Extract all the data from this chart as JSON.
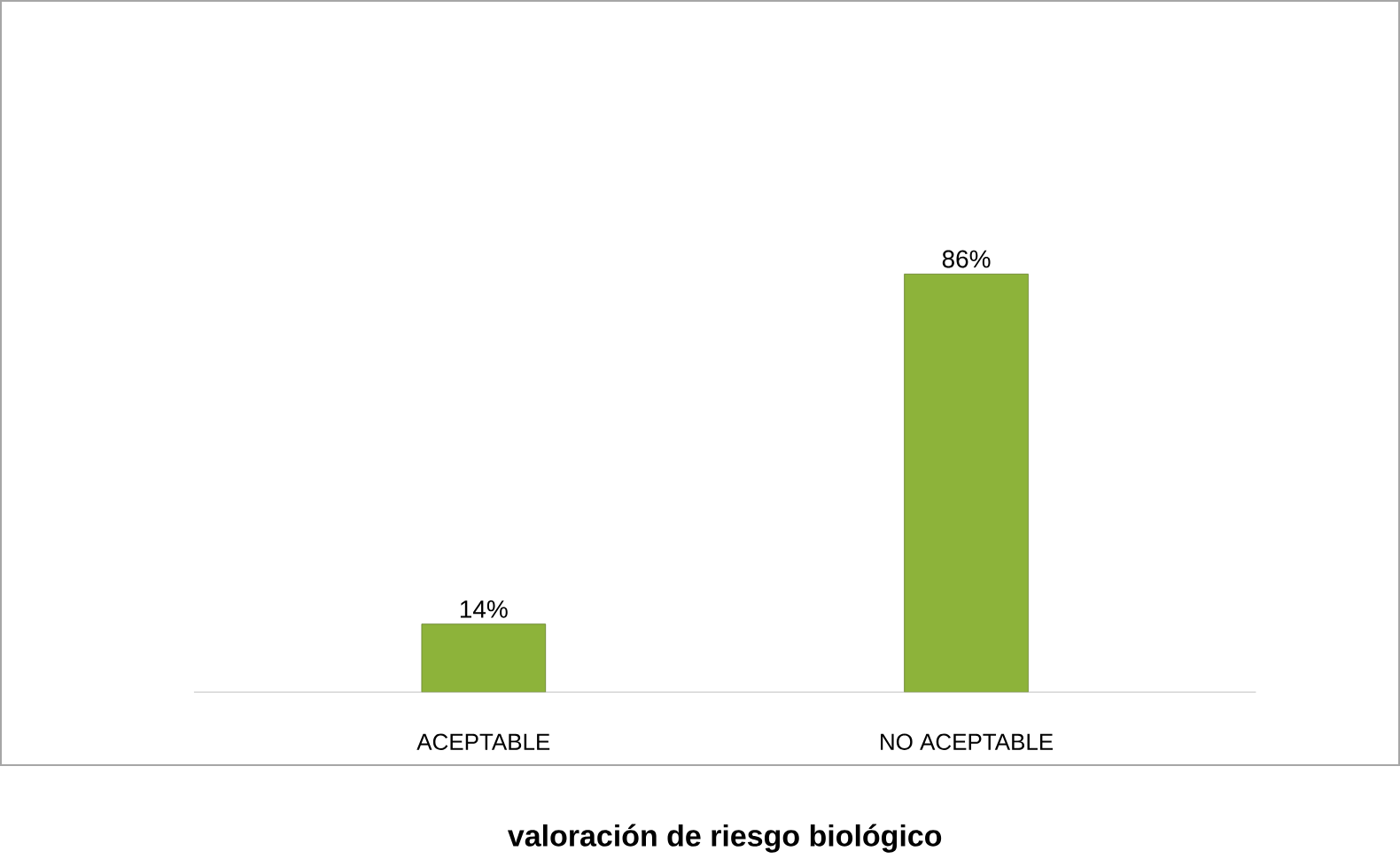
{
  "chart_data": {
    "type": "bar",
    "xlabel": "valoración de riesgo biológico",
    "categories": [
      "ACEPTABLE",
      "NO ACEPTABLE"
    ],
    "values": [
      14,
      86
    ],
    "value_labels": [
      "14%",
      "86%"
    ],
    "color": "#8db33a"
  }
}
